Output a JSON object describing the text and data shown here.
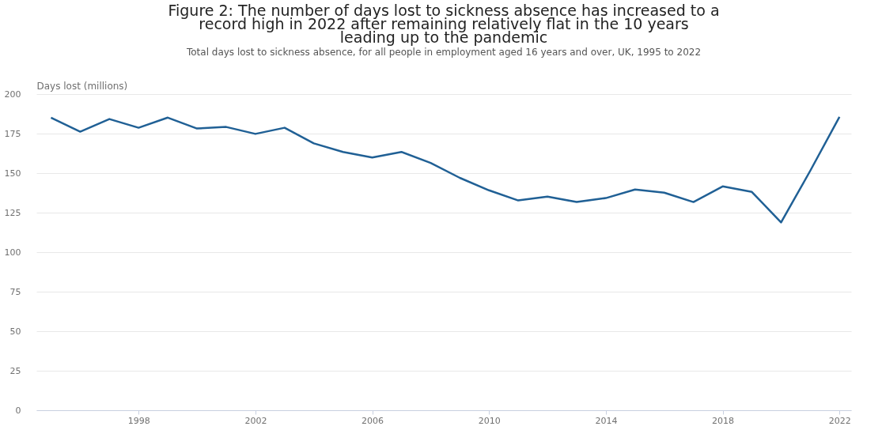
{
  "chart_data": {
    "type": "line",
    "title": "Figure 2: The number of days lost to sickness absence has increased to a record high in 2022 after remaining relatively flat in the 10 years leading up to the pandemic",
    "subtitle": "Total days lost to sickness absence, for all people in employment aged 16 years and over, UK, 1995 to 2022",
    "ylabel": "Days lost (millions)",
    "x": [
      1995,
      1996,
      1997,
      1998,
      1999,
      2000,
      2001,
      2002,
      2003,
      2004,
      2005,
      2006,
      2007,
      2008,
      2009,
      2010,
      2011,
      2012,
      2013,
      2014,
      2015,
      2016,
      2017,
      2018,
      2019,
      2020,
      2021,
      2022
    ],
    "series": [
      {
        "color": "#206095",
        "values": [
          185.1,
          176.2,
          184.2,
          178.7,
          185.1,
          178.2,
          179.2,
          174.8,
          178.7,
          168.8,
          163.4,
          159.9,
          163.4,
          156.4,
          147,
          139.1,
          132.7,
          135.1,
          131.7,
          134.2,
          139.6,
          137.6,
          131.7,
          141.6,
          138.1,
          118.8,
          151.5,
          185.6
        ]
      }
    ],
    "xlim": [
      1994.5,
      2022.4
    ],
    "xticks": [
      1998,
      2002,
      2006,
      2010,
      2014,
      2018,
      2022
    ],
    "ylim": [
      0,
      200
    ],
    "yticks": [
      0,
      25,
      50,
      75,
      100,
      125,
      150,
      175,
      200
    ],
    "grid": "y",
    "marker": "none",
    "line_style": "solid"
  }
}
